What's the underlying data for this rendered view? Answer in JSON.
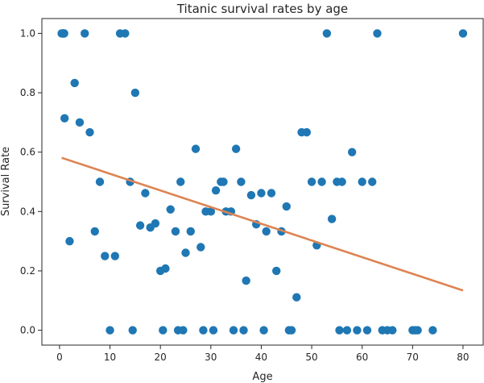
{
  "chart_data": {
    "type": "scatter",
    "title": "Titanic survival rates by age",
    "xlabel": "Age",
    "ylabel": "Survival Rate",
    "xlim": [
      -3.5,
      84
    ],
    "ylim": [
      -0.05,
      1.05
    ],
    "xticks": [
      0,
      10,
      20,
      30,
      40,
      50,
      60,
      70,
      80
    ],
    "yticks": [
      0.0,
      0.2,
      0.4,
      0.6,
      0.8,
      1.0
    ],
    "xtick_labels": [
      "0",
      "10",
      "20",
      "30",
      "40",
      "50",
      "60",
      "70",
      "80"
    ],
    "ytick_labels": [
      "0.0",
      "0.2",
      "0.4",
      "0.6",
      "0.8",
      "1.0"
    ],
    "grid": false,
    "series": [
      {
        "kind": "scatter",
        "color": "#1f77b4",
        "points": [
          [
            0.42,
            1.0
          ],
          [
            0.67,
            1.0
          ],
          [
            0.75,
            1.0
          ],
          [
            0.83,
            1.0
          ],
          [
            0.92,
            1.0
          ],
          [
            1,
            0.714
          ],
          [
            2,
            0.3
          ],
          [
            3,
            0.833
          ],
          [
            4,
            0.7
          ],
          [
            5,
            1.0
          ],
          [
            6,
            0.667
          ],
          [
            7,
            0.333
          ],
          [
            8,
            0.5
          ],
          [
            9,
            0.25
          ],
          [
            10,
            0.0
          ],
          [
            11,
            0.25
          ],
          [
            12,
            1.0
          ],
          [
            13,
            1.0
          ],
          [
            14,
            0.5
          ],
          [
            14.5,
            0.0
          ],
          [
            15,
            0.8
          ],
          [
            16,
            0.353
          ],
          [
            17,
            0.462
          ],
          [
            18,
            0.346
          ],
          [
            19,
            0.36
          ],
          [
            20,
            0.2
          ],
          [
            20.5,
            0.0
          ],
          [
            21,
            0.208
          ],
          [
            22,
            0.407
          ],
          [
            23,
            0.333
          ],
          [
            23.5,
            0.0
          ],
          [
            24,
            0.5
          ],
          [
            24.5,
            0.0
          ],
          [
            25,
            0.261
          ],
          [
            26,
            0.333
          ],
          [
            27,
            0.611
          ],
          [
            28,
            0.28
          ],
          [
            28.5,
            0.0
          ],
          [
            29,
            0.4
          ],
          [
            30,
            0.4
          ],
          [
            30.5,
            0.0
          ],
          [
            31,
            0.471
          ],
          [
            32,
            0.5
          ],
          [
            32.5,
            0.5
          ],
          [
            33,
            0.4
          ],
          [
            34,
            0.4
          ],
          [
            34.5,
            0.0
          ],
          [
            35,
            0.611
          ],
          [
            36,
            0.5
          ],
          [
            36.5,
            0.0
          ],
          [
            37,
            0.167
          ],
          [
            38,
            0.455
          ],
          [
            39,
            0.357
          ],
          [
            40,
            0.462
          ],
          [
            40.5,
            0.0
          ],
          [
            41,
            0.333
          ],
          [
            42,
            0.462
          ],
          [
            43,
            0.2
          ],
          [
            44,
            0.333
          ],
          [
            45,
            0.417
          ],
          [
            45.5,
            0.0
          ],
          [
            46,
            0.0
          ],
          [
            47,
            0.111
          ],
          [
            48,
            0.667
          ],
          [
            49,
            0.667
          ],
          [
            50,
            0.5
          ],
          [
            51,
            0.286
          ],
          [
            52,
            0.5
          ],
          [
            53,
            1.0
          ],
          [
            54,
            0.375
          ],
          [
            55,
            0.5
          ],
          [
            55.5,
            0.0
          ],
          [
            56,
            0.5
          ],
          [
            57,
            0.0
          ],
          [
            58,
            0.6
          ],
          [
            59,
            0.0
          ],
          [
            60,
            0.5
          ],
          [
            61,
            0.0
          ],
          [
            62,
            0.5
          ],
          [
            63,
            1.0
          ],
          [
            64,
            0.0
          ],
          [
            65,
            0.0
          ],
          [
            66,
            0.0
          ],
          [
            70,
            0.0
          ],
          [
            70.5,
            0.0
          ],
          [
            71,
            0.0
          ],
          [
            74,
            0.0
          ],
          [
            80,
            1.0
          ]
        ]
      },
      {
        "kind": "line",
        "color": "#dd8452",
        "x": [
          0.42,
          80
        ],
        "y": [
          0.581,
          0.134
        ]
      }
    ]
  }
}
